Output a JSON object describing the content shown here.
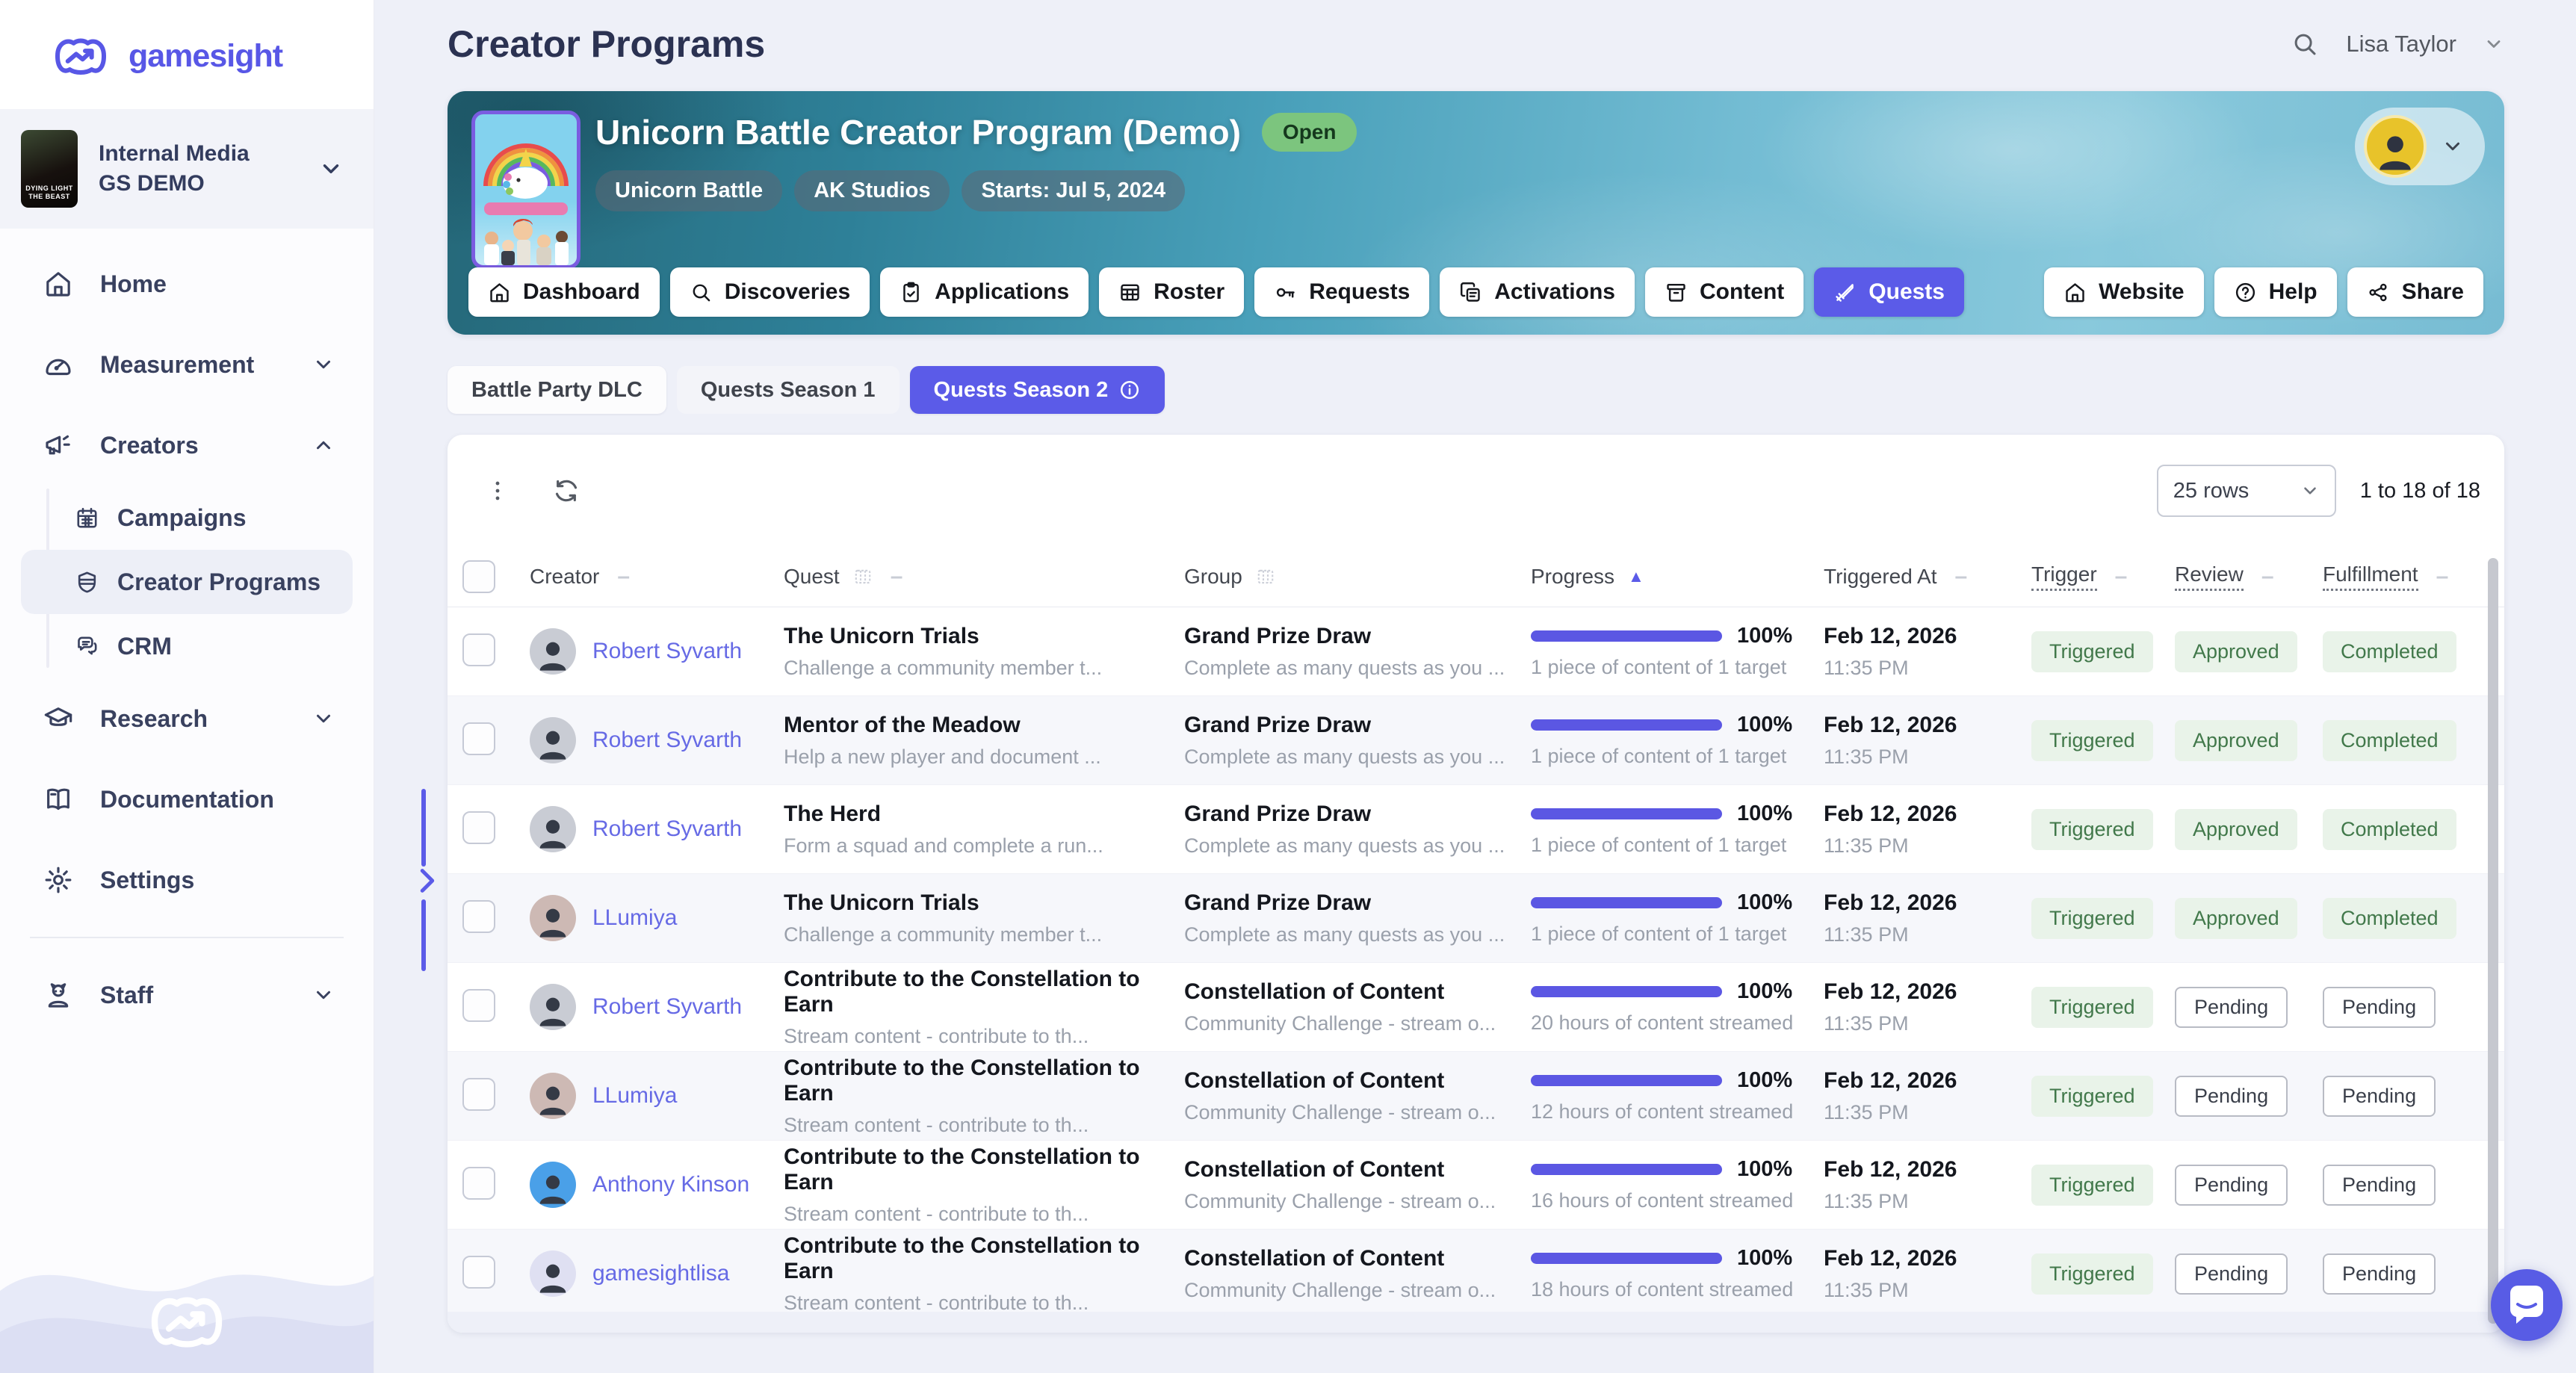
{
  "brand": {
    "logo_text": "gamesight"
  },
  "org_selector": {
    "name": "Internal Media",
    "env": "GS DEMO",
    "cover_text": "DYING LIGHT THE BEAST"
  },
  "sidebar": {
    "items": [
      {
        "label": "Home",
        "icon": "home"
      },
      {
        "label": "Measurement",
        "icon": "gauge",
        "chevron": "down"
      },
      {
        "label": "Creators",
        "icon": "megaphone",
        "chevron": "up"
      },
      {
        "label": "Campaigns",
        "icon": "calendar",
        "sub": true
      },
      {
        "label": "Creator Programs",
        "icon": "shield",
        "sub": true,
        "active": true
      },
      {
        "label": "CRM",
        "icon": "chat",
        "sub": true
      },
      {
        "label": "Research",
        "icon": "grad",
        "chevron": "down"
      },
      {
        "label": "Documentation",
        "icon": "book"
      },
      {
        "label": "Settings",
        "icon": "gear"
      },
      {
        "divider": true
      },
      {
        "label": "Staff",
        "icon": "staff",
        "chevron": "down"
      }
    ]
  },
  "topbar": {
    "title": "Creator Programs",
    "user_name": "Lisa Taylor"
  },
  "banner": {
    "title": "Unicorn Battle Creator Program (Demo)",
    "status_badge": "Open",
    "tags": [
      {
        "label": "Unicorn Battle"
      },
      {
        "label": "AK Studios"
      },
      {
        "label": "Starts: Jul 5, 2024"
      }
    ],
    "tabs": [
      {
        "label": "Dashboard",
        "icon": "home"
      },
      {
        "label": "Discoveries",
        "icon": "search"
      },
      {
        "label": "Applications",
        "icon": "clipboard"
      },
      {
        "label": "Roster",
        "icon": "table"
      },
      {
        "label": "Requests",
        "icon": "key"
      },
      {
        "label": "Activations",
        "icon": "copy"
      },
      {
        "label": "Content",
        "icon": "archive"
      },
      {
        "label": "Quests",
        "icon": "sword",
        "active": true
      }
    ],
    "actions": [
      {
        "label": "Website",
        "icon": "home"
      },
      {
        "label": "Help",
        "icon": "help"
      },
      {
        "label": "Share",
        "icon": "share"
      }
    ]
  },
  "subtabs": [
    {
      "label": "Battle Party DLC"
    },
    {
      "label": "Quests Season 1",
      "muted": true
    },
    {
      "label": "Quests Season 2",
      "active": true,
      "info": true
    }
  ],
  "table": {
    "page_size": "25 rows",
    "range": "1 to 18 of 18",
    "columns": [
      {
        "label": "Creator",
        "menu": true
      },
      {
        "label": "Quest",
        "icon": true,
        "menu": true
      },
      {
        "label": "Group",
        "icon": true
      },
      {
        "label": "Progress",
        "sorted": "asc"
      },
      {
        "label": "Triggered At",
        "menu": true
      },
      {
        "label": "Trigger",
        "underline": true,
        "menu": true
      },
      {
        "label": "Review",
        "underline": true,
        "menu": true
      },
      {
        "label": "Fulfillment",
        "underline": true,
        "menu": true
      }
    ],
    "rows": [
      {
        "creator": "Robert Syvarth",
        "avatar_bg": "#c9ccd4",
        "quest": "The Unicorn Trials",
        "quest_sub": "Challenge a community member t...",
        "group": "Grand Prize Draw",
        "group_sub": "Complete as many quests as you ...",
        "progress_pct": "100%",
        "progress_value": 100,
        "progress_sub": "1 piece of content of 1 target",
        "date": "Feb 12, 2026",
        "time": "11:35 PM",
        "trigger": {
          "label": "Triggered",
          "style": "green"
        },
        "review": {
          "label": "Approved",
          "style": "green"
        },
        "fulfillment": {
          "label": "Completed",
          "style": "green"
        }
      },
      {
        "creator": "Robert Syvarth",
        "avatar_bg": "#c9ccd4",
        "quest": "Mentor of the Meadow",
        "quest_sub": "Help a new player and document ...",
        "group": "Grand Prize Draw",
        "group_sub": "Complete as many quests as you ...",
        "progress_pct": "100%",
        "progress_value": 100,
        "progress_sub": "1 piece of content of 1 target",
        "date": "Feb 12, 2026",
        "time": "11:35 PM",
        "trigger": {
          "label": "Triggered",
          "style": "green"
        },
        "review": {
          "label": "Approved",
          "style": "green"
        },
        "fulfillment": {
          "label": "Completed",
          "style": "green"
        }
      },
      {
        "creator": "Robert Syvarth",
        "avatar_bg": "#c9ccd4",
        "quest": "The Herd",
        "quest_sub": "Form a squad and complete a run...",
        "group": "Grand Prize Draw",
        "group_sub": "Complete as many quests as you ...",
        "progress_pct": "100%",
        "progress_value": 100,
        "progress_sub": "1 piece of content of 1 target",
        "date": "Feb 12, 2026",
        "time": "11:35 PM",
        "trigger": {
          "label": "Triggered",
          "style": "green"
        },
        "review": {
          "label": "Approved",
          "style": "green"
        },
        "fulfillment": {
          "label": "Completed",
          "style": "green"
        }
      },
      {
        "creator": "LLumiya",
        "avatar_bg": "#cdb9b4",
        "quest": "The Unicorn Trials",
        "quest_sub": "Challenge a community member t...",
        "group": "Grand Prize Draw",
        "group_sub": "Complete as many quests as you ...",
        "progress_pct": "100%",
        "progress_value": 100,
        "progress_sub": "1 piece of content of 1 target",
        "date": "Feb 12, 2026",
        "time": "11:35 PM",
        "trigger": {
          "label": "Triggered",
          "style": "green"
        },
        "review": {
          "label": "Approved",
          "style": "green"
        },
        "fulfillment": {
          "label": "Completed",
          "style": "green"
        }
      },
      {
        "creator": "Robert Syvarth",
        "avatar_bg": "#c9ccd4",
        "quest": "Contribute to the Constellation to Earn",
        "quest_sub": "Stream content - contribute to th...",
        "group": "Constellation of Content",
        "group_sub": "Community Challenge - stream o...",
        "progress_pct": "100%",
        "progress_value": 100,
        "progress_sub": "20 hours of content streamed",
        "date": "Feb 12, 2026",
        "time": "11:35 PM",
        "trigger": {
          "label": "Triggered",
          "style": "green"
        },
        "review": {
          "label": "Pending",
          "style": "outline"
        },
        "fulfillment": {
          "label": "Pending",
          "style": "outline"
        }
      },
      {
        "creator": "LLumiya",
        "avatar_bg": "#cdb9b4",
        "quest": "Contribute to the Constellation to Earn",
        "quest_sub": "Stream content - contribute to th...",
        "group": "Constellation of Content",
        "group_sub": "Community Challenge - stream o...",
        "progress_pct": "100%",
        "progress_value": 100,
        "progress_sub": "12 hours of content streamed",
        "date": "Feb 12, 2026",
        "time": "11:35 PM",
        "trigger": {
          "label": "Triggered",
          "style": "green"
        },
        "review": {
          "label": "Pending",
          "style": "outline"
        },
        "fulfillment": {
          "label": "Pending",
          "style": "outline"
        }
      },
      {
        "creator": "Anthony Kinson",
        "avatar_bg": "#4aa0e8",
        "quest": "Contribute to the Constellation to Earn",
        "quest_sub": "Stream content - contribute to th...",
        "group": "Constellation of Content",
        "group_sub": "Community Challenge - stream o...",
        "progress_pct": "100%",
        "progress_value": 100,
        "progress_sub": "16 hours of content streamed",
        "date": "Feb 12, 2026",
        "time": "11:35 PM",
        "trigger": {
          "label": "Triggered",
          "style": "green"
        },
        "review": {
          "label": "Pending",
          "style": "outline"
        },
        "fulfillment": {
          "label": "Pending",
          "style": "outline"
        }
      },
      {
        "creator": "gamesightlisa",
        "avatar_bg": "#dfe0f2",
        "quest": "Contribute to the Constellation to Earn",
        "quest_sub": "Stream content - contribute to th...",
        "group": "Constellation of Content",
        "group_sub": "Community Challenge - stream o...",
        "progress_pct": "100%",
        "progress_value": 100,
        "progress_sub": "18 hours of content streamed",
        "date": "Feb 12, 2026",
        "time": "11:35 PM",
        "trigger": {
          "label": "Triggered",
          "style": "green"
        },
        "review": {
          "label": "Pending",
          "style": "outline"
        },
        "fulfillment": {
          "label": "Pending",
          "style": "outline"
        }
      }
    ]
  },
  "colors": {
    "accent": "#5b5be8",
    "link": "#666ae5",
    "progress_bar": "#5b57e3",
    "green_badge_bg": "#e9f3e9",
    "green_badge_text": "#41784a",
    "open_badge_bg": "#7cc57e"
  }
}
